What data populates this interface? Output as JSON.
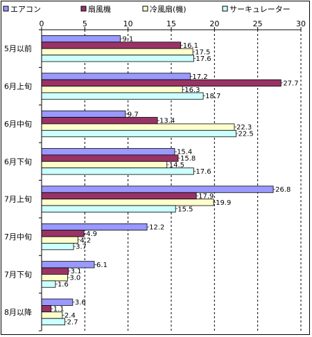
{
  "chart_data": {
    "type": "bar",
    "orientation": "horizontal",
    "title": "",
    "xlabel": "",
    "ylabel": "",
    "xlim": [
      0,
      30
    ],
    "xticks": [
      "0",
      "5",
      "10",
      "15",
      "20",
      "25",
      "30"
    ],
    "grid": "vertical dashed",
    "legend_position": "top",
    "categories": [
      "5月以前",
      "6月上旬",
      "6月中旬",
      "6月下旬",
      "7月上旬",
      "7月中旬",
      "7月下旬",
      "8月以降"
    ],
    "series": [
      {
        "name": "エアコン",
        "color": "#9999ff",
        "values": [
          9.1,
          17.2,
          9.7,
          15.4,
          26.8,
          12.2,
          6.1,
          3.6
        ]
      },
      {
        "name": "扇風機",
        "color": "#993366",
        "values": [
          16.1,
          27.7,
          13.4,
          15.8,
          17.9,
          4.9,
          3.1,
          1.1
        ]
      },
      {
        "name": "冷風扇(機)",
        "color": "#ffffcc",
        "values": [
          17.5,
          16.3,
          22.3,
          14.5,
          19.9,
          4.2,
          3.0,
          2.4
        ]
      },
      {
        "name": "サーキュレーター",
        "color": "#ccffff",
        "values": [
          17.6,
          18.7,
          22.5,
          17.6,
          15.5,
          3.7,
          1.6,
          2.7
        ]
      }
    ]
  }
}
